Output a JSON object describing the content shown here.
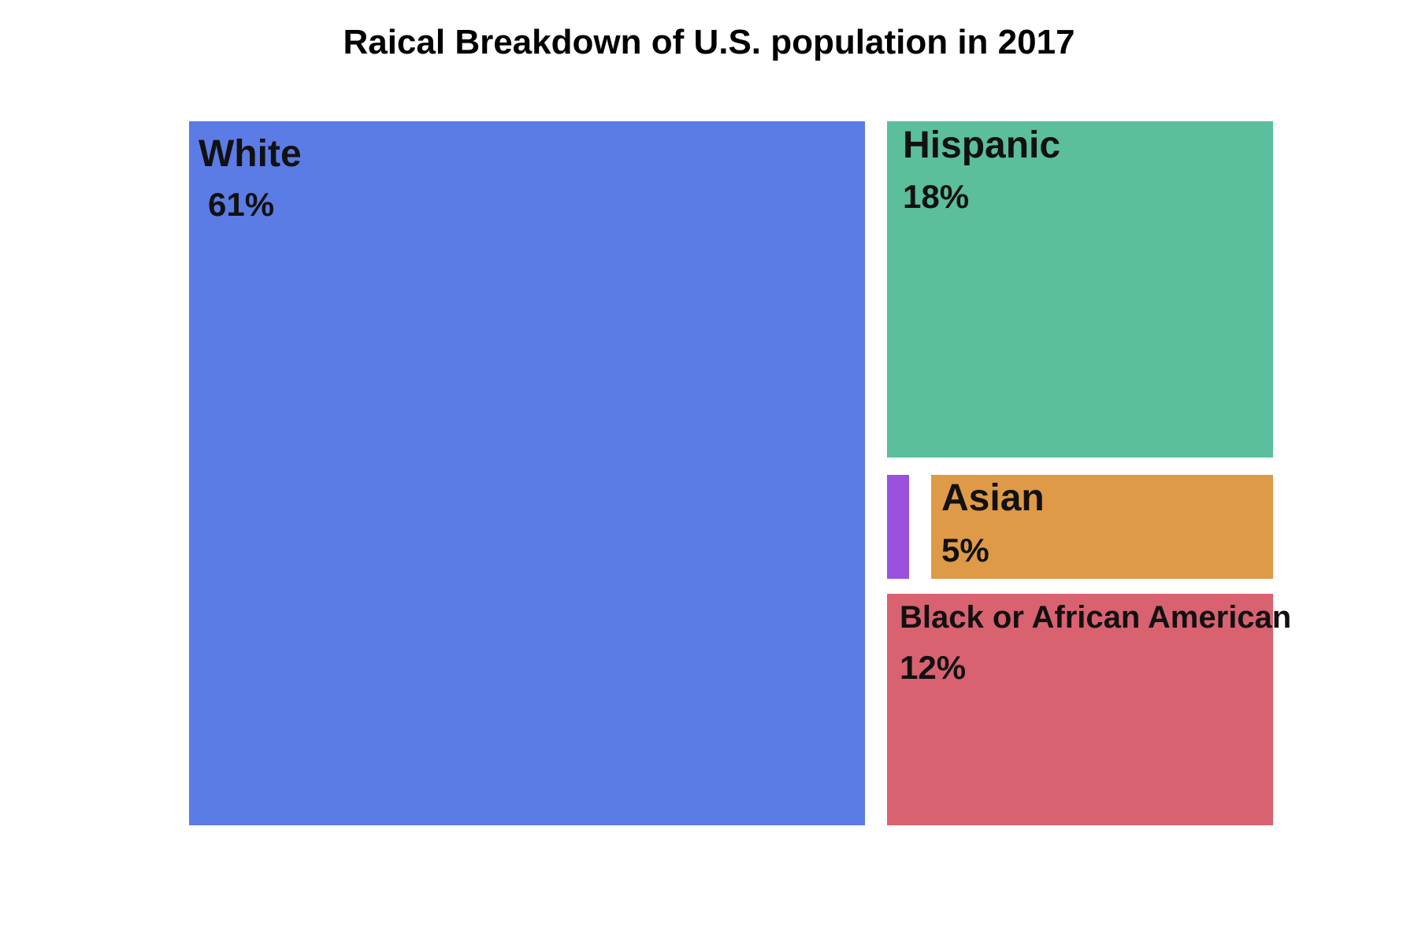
{
  "chart_data": {
    "type": "treemap",
    "title": "Raical Breakdown of U.S. population in 2017",
    "cells": [
      {
        "name": "White",
        "percent_label": "61%",
        "value": 61,
        "color": "#5b7be5"
      },
      {
        "name": "Hispanic",
        "percent_label": "18%",
        "value": 18,
        "color": "#5bbf9c"
      },
      {
        "name": "",
        "percent_label": "",
        "value": 1,
        "color": "#9b51e0"
      },
      {
        "name": "Asian",
        "percent_label": "5%",
        "value": 5,
        "color": "#df9a48"
      },
      {
        "name": "Black or African American",
        "percent_label": "12%",
        "value": 12,
        "color": "#d96270"
      }
    ]
  }
}
